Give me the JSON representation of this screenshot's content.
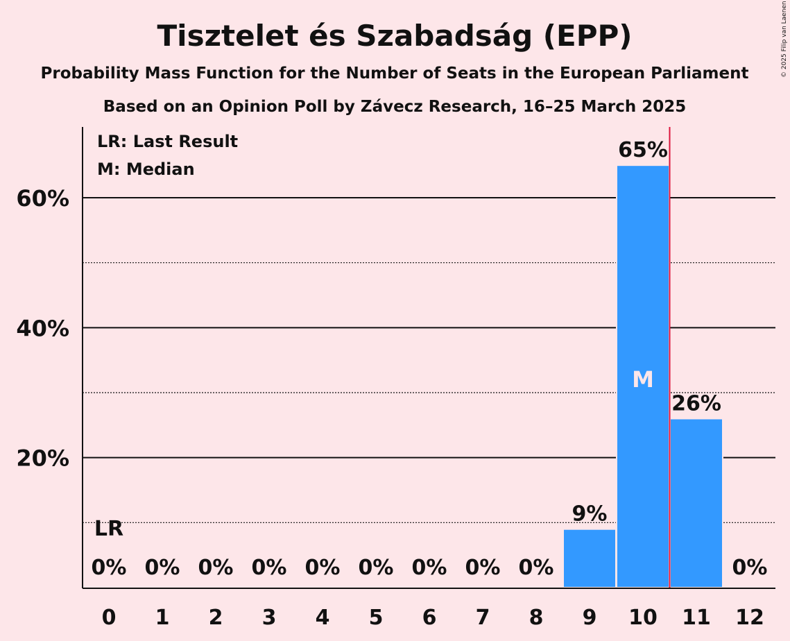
{
  "chart_data": {
    "type": "bar",
    "title": "Tisztelet és Szabadság (EPP)",
    "subtitle": "Probability Mass Function for the Number of Seats in the European Parliament",
    "subtitle2": "Based on an Opinion Poll by Závecz Research, 16–25 March 2025",
    "copyright": "© 2025 Filip van Laenen",
    "categories": [
      "0",
      "1",
      "2",
      "3",
      "4",
      "5",
      "6",
      "7",
      "8",
      "9",
      "10",
      "11",
      "12"
    ],
    "values": [
      0,
      0,
      0,
      0,
      0,
      0,
      0,
      0,
      0,
      9,
      65,
      26,
      0
    ],
    "labels": [
      "0%",
      "0%",
      "0%",
      "0%",
      "0%",
      "0%",
      "0%",
      "0%",
      "0%",
      "9%",
      "65%",
      "26%",
      "0%"
    ],
    "ylim": [
      0,
      70
    ],
    "yticks": [
      {
        "v": 20,
        "label": "20%"
      },
      {
        "v": 40,
        "label": "40%"
      },
      {
        "v": 60,
        "label": "60%"
      }
    ],
    "minor_grid": [
      10,
      30,
      50
    ],
    "bar_color": "#3399ff",
    "last_result_line_color": "#dc143c",
    "last_result_seat": 0,
    "last_result_marker": "LR",
    "median_seat": 10,
    "median_marker": "M",
    "red_line_position": 10.5,
    "legend": {
      "lr": "LR: Last Result",
      "m": "M: Median",
      "placement": "top-right"
    }
  }
}
